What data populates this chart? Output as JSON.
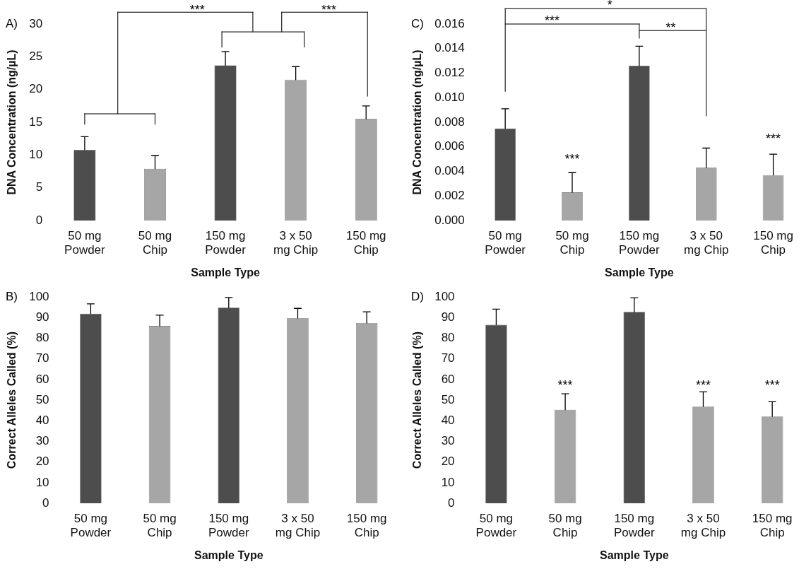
{
  "chart_data": [
    {
      "type": "bar",
      "title": "A)",
      "xlabel": "Sample Type",
      "ylabel": "DNA Concentration (ng/µL)",
      "categories": [
        "50 mg Powder",
        "50 mg Chip",
        "150 mg Powder",
        "3 x 50 mg Chip",
        "150 mg Chip"
      ],
      "values": [
        10.8,
        7.9,
        23.7,
        21.5,
        15.5
      ],
      "errors": [
        2,
        2,
        2.1,
        2,
        2
      ],
      "colors": [
        "#4d4d4d",
        "#a6a6a6",
        "#4d4d4d",
        "#a6a6a6",
        "#a6a6a6"
      ],
      "ylim": [
        0,
        30
      ],
      "yticks": [
        0,
        5,
        10,
        15,
        20,
        25,
        30
      ],
      "grid": false,
      "legend": false,
      "annotations": [
        "***",
        "***"
      ]
    },
    {
      "type": "bar",
      "title": "C)",
      "xlabel": "Sample Type",
      "ylabel": "DNA Concentration (ng/µL)",
      "categories": [
        "50 mg Powder",
        "50 mg Chip",
        "150 mg Powder",
        "3 x 50 mg Chip",
        "150 mg Chip"
      ],
      "values": [
        0.0075,
        0.0023,
        0.0126,
        0.0043,
        0.0037
      ],
      "errors": [
        0.0016,
        0.0016,
        0.0016,
        0.0016,
        0.0017
      ],
      "colors": [
        "#4d4d4d",
        "#a6a6a6",
        "#4d4d4d",
        "#a6a6a6",
        "#a6a6a6"
      ],
      "ylim": [
        0,
        0.016
      ],
      "yticks": [
        {
          "value": 0,
          "label": "0.000"
        },
        {
          "value": 0.002,
          "label": "0.002"
        },
        {
          "value": 0.004,
          "label": "0.004"
        },
        {
          "value": 0.006,
          "label": "0.006"
        },
        {
          "value": 0.008,
          "label": "0.008"
        },
        {
          "value": 0.01,
          "label": "0.010"
        },
        {
          "value": 0.012,
          "label": "0.012"
        },
        {
          "value": 0.014,
          "label": "0.014"
        },
        {
          "value": 0.016,
          "label": "0.016"
        }
      ],
      "grid": false,
      "legend": false,
      "annotations": [
        "*",
        "***",
        "**",
        "***",
        "***"
      ]
    },
    {
      "type": "bar",
      "title": "B)",
      "xlabel": "Sample Type",
      "ylabel": "Correct Alleles Called (%)",
      "categories": [
        "50 mg Powder",
        "50 mg Chip",
        "150 mg Powder",
        "3 x 50 mg Chip",
        "150 mg Chip"
      ],
      "values": [
        91.9,
        86,
        94.8,
        89.8,
        87.4
      ],
      "errors": [
        4.8,
        5.2,
        5,
        4.7,
        5.4
      ],
      "colors": [
        "#4d4d4d",
        "#a6a6a6",
        "#4d4d4d",
        "#a6a6a6",
        "#a6a6a6"
      ],
      "ylim": [
        0,
        100
      ],
      "yticks": [
        0,
        10,
        20,
        30,
        40,
        50,
        60,
        70,
        80,
        90,
        100
      ],
      "grid": false,
      "legend": false
    },
    {
      "type": "bar",
      "title": "D)",
      "xlabel": "Sample Type",
      "ylabel": "Correct Alleles Called (%)",
      "categories": [
        "50 mg Powder",
        "50 mg Chip",
        "150 mg Powder",
        "3 x 50 mg Chip",
        "150 mg Chip"
      ],
      "values": [
        86.5,
        45.3,
        92.8,
        46.9,
        42.1
      ],
      "errors": [
        7.6,
        7.8,
        6.8,
        7.1,
        7.1
      ],
      "colors": [
        "#4d4d4d",
        "#a6a6a6",
        "#4d4d4d",
        "#a6a6a6",
        "#a6a6a6"
      ],
      "ylim": [
        0,
        100
      ],
      "yticks": [
        0,
        10,
        20,
        30,
        40,
        50,
        60,
        70,
        80,
        90,
        100
      ],
      "grid": false,
      "legend": false,
      "annotations": [
        "***",
        "***",
        "***"
      ]
    }
  ]
}
